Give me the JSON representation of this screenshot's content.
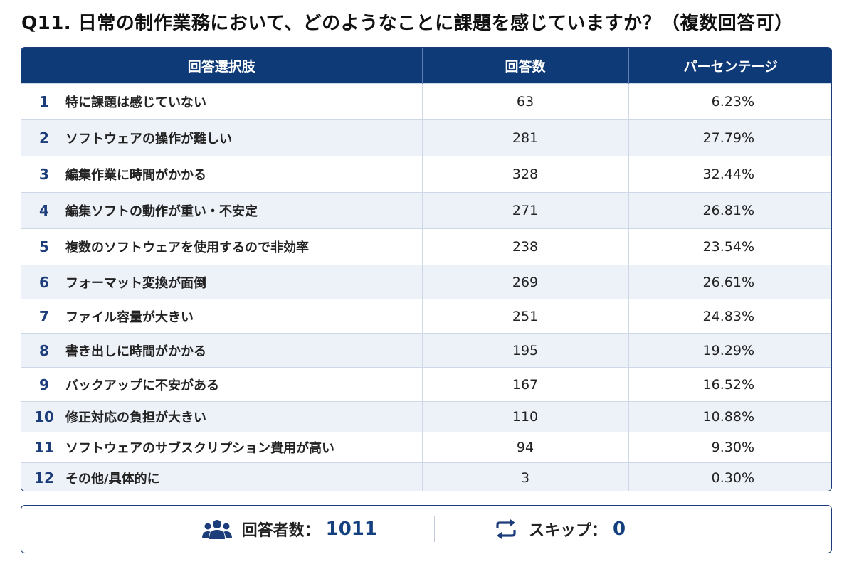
{
  "title": "Q11. 日常の制作業務において、どのようなことに課題を感じていますか？（複数回答可）",
  "table": {
    "headers": [
      "回答選択肢",
      "回答数",
      "パーセンテージ"
    ],
    "rows": [
      {
        "no": "1",
        "label": "特に課題は感じていない",
        "count": "63",
        "percent": "6.23%"
      },
      {
        "no": "2",
        "label": "ソフトウェアの操作が難しい",
        "count": "281",
        "percent": "27.79%"
      },
      {
        "no": "3",
        "label": "編集作業に時間がかかる",
        "count": "328",
        "percent": "32.44%"
      },
      {
        "no": "4",
        "label": "編集ソフトの動作が重い・不安定",
        "count": "271",
        "percent": "26.81%"
      },
      {
        "no": "5",
        "label": "複数のソフトウェアを使用するので非効率",
        "count": "238",
        "percent": "23.54%"
      },
      {
        "no": "6",
        "label": "フォーマット変換が面倒",
        "count": "269",
        "percent": "26.61%"
      },
      {
        "no": "7",
        "label": "ファイル容量が大きい",
        "count": "251",
        "percent": "24.83%"
      },
      {
        "no": "8",
        "label": "書き出しに時間がかかる",
        "count": "195",
        "percent": "19.29%"
      },
      {
        "no": "9",
        "label": "バックアップに不安がある",
        "count": "167",
        "percent": "16.52%"
      },
      {
        "no": "10",
        "label": "修正対応の負担が大きい",
        "count": "110",
        "percent": "10.88%"
      },
      {
        "no": "11",
        "label": "ソフトウェアのサブスクリプション費用が高い",
        "count": "94",
        "percent": "9.30%"
      },
      {
        "no": "12",
        "label": "その他/具体的に",
        "count": "3",
        "percent": "0.30%"
      }
    ]
  },
  "footer": {
    "respondents_label": "回答者数：",
    "respondents_value": "1011",
    "respondents_icon": "users-icon",
    "skip_label": "スキップ：",
    "skip_value": "0",
    "skip_icon": "repeat-icon"
  },
  "colors": {
    "header_bg": "#0f3a78",
    "accent": "#14407f",
    "stripe": "#edf1f8"
  },
  "chart_data": {
    "type": "table",
    "title": "Q11. 日常の制作業務において、どのようなことに課題を感じていますか？（複数回答可）",
    "columns": [
      "回答選択肢",
      "回答数",
      "パーセンテージ"
    ],
    "categories": [
      "特に課題は感じていない",
      "ソフトウェアの操作が難しい",
      "編集作業に時間がかかる",
      "編集ソフトの動作が重い・不安定",
      "複数のソフトウェアを使用するので非効率",
      "フォーマット変換が面倒",
      "ファイル容量が大きい",
      "書き出しに時間がかかる",
      "バックアップに不安がある",
      "修正対応の負担が大きい",
      "ソフトウェアのサブスクリプション費用が高い",
      "その他/具体的に"
    ],
    "series": [
      {
        "name": "回答数",
        "values": [
          63,
          281,
          328,
          271,
          238,
          269,
          251,
          195,
          167,
          110,
          94,
          3
        ]
      },
      {
        "name": "パーセンテージ",
        "values": [
          6.23,
          27.79,
          32.44,
          26.81,
          23.54,
          26.61,
          24.83,
          19.29,
          16.52,
          10.88,
          9.3,
          0.3
        ]
      }
    ],
    "respondents": 1011,
    "skipped": 0
  }
}
